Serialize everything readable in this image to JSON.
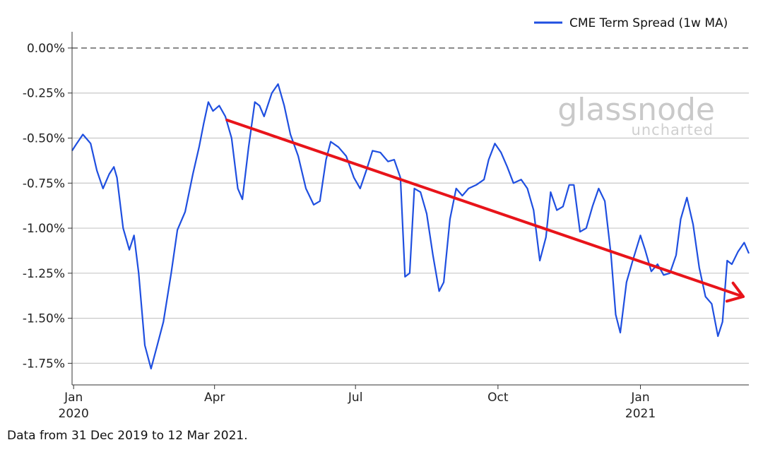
{
  "chart_data": {
    "type": "line",
    "legend": {
      "label": "CME Term Spread (1w MA)",
      "placement": "top-right"
    },
    "ylim": [
      -1.87,
      0.09
    ],
    "y_ticks": [
      {
        "value": 0.0,
        "label": "0.00%"
      },
      {
        "value": -0.25,
        "label": "-0.25%"
      },
      {
        "value": -0.5,
        "label": "-0.50%"
      },
      {
        "value": -0.75,
        "label": "-0.75%"
      },
      {
        "value": -1.0,
        "label": "-1.00%"
      },
      {
        "value": -1.25,
        "label": "-1.25%"
      },
      {
        "value": -1.5,
        "label": "-1.50%"
      },
      {
        "value": -1.75,
        "label": "-1.75%"
      }
    ],
    "xlim": [
      "2019-12-31",
      "2021-03-12"
    ],
    "x_ticks": [
      {
        "date": "2020-01-01",
        "label": "Jan",
        "sublabel": "2020"
      },
      {
        "date": "2020-04-01",
        "label": "Apr",
        "sublabel": ""
      },
      {
        "date": "2020-07-01",
        "label": "Jul",
        "sublabel": ""
      },
      {
        "date": "2020-10-01",
        "label": "Oct",
        "sublabel": ""
      },
      {
        "date": "2021-01-01",
        "label": "Jan",
        "sublabel": "2021"
      }
    ],
    "grid": "horizontal",
    "zero_line": "dashed",
    "series": [
      {
        "name": "CME Term Spread (1w MA)",
        "color": "#1f4fe0",
        "points": [
          [
            "2019-12-31",
            -0.57
          ],
          [
            "2020-01-03",
            -0.53
          ],
          [
            "2020-01-07",
            -0.48
          ],
          [
            "2020-01-12",
            -0.53
          ],
          [
            "2020-01-16",
            -0.68
          ],
          [
            "2020-01-20",
            -0.78
          ],
          [
            "2020-01-24",
            -0.7
          ],
          [
            "2020-01-27",
            -0.66
          ],
          [
            "2020-01-29",
            -0.72
          ],
          [
            "2020-02-02",
            -1.0
          ],
          [
            "2020-02-06",
            -1.12
          ],
          [
            "2020-02-09",
            -1.04
          ],
          [
            "2020-02-12",
            -1.25
          ],
          [
            "2020-02-16",
            -1.65
          ],
          [
            "2020-02-20",
            -1.78
          ],
          [
            "2020-02-24",
            -1.65
          ],
          [
            "2020-02-28",
            -1.52
          ],
          [
            "2020-03-04",
            -1.25
          ],
          [
            "2020-03-08",
            -1.01
          ],
          [
            "2020-03-13",
            -0.91
          ],
          [
            "2020-03-18",
            -0.7
          ],
          [
            "2020-03-22",
            -0.55
          ],
          [
            "2020-03-25",
            -0.42
          ],
          [
            "2020-03-28",
            -0.3
          ],
          [
            "2020-03-31",
            -0.35
          ],
          [
            "2020-04-04",
            -0.32
          ],
          [
            "2020-04-08",
            -0.38
          ],
          [
            "2020-04-12",
            -0.5
          ],
          [
            "2020-04-16",
            -0.78
          ],
          [
            "2020-04-19",
            -0.84
          ],
          [
            "2020-04-23",
            -0.55
          ],
          [
            "2020-04-27",
            -0.3
          ],
          [
            "2020-04-30",
            -0.32
          ],
          [
            "2020-05-03",
            -0.38
          ],
          [
            "2020-05-08",
            -0.25
          ],
          [
            "2020-05-12",
            -0.2
          ],
          [
            "2020-05-16",
            -0.32
          ],
          [
            "2020-05-20",
            -0.48
          ],
          [
            "2020-05-25",
            -0.6
          ],
          [
            "2020-05-30",
            -0.78
          ],
          [
            "2020-06-04",
            -0.87
          ],
          [
            "2020-06-08",
            -0.85
          ],
          [
            "2020-06-12",
            -0.62
          ],
          [
            "2020-06-15",
            -0.52
          ],
          [
            "2020-06-20",
            -0.55
          ],
          [
            "2020-06-25",
            -0.6
          ],
          [
            "2020-06-30",
            -0.72
          ],
          [
            "2020-07-04",
            -0.78
          ],
          [
            "2020-07-08",
            -0.68
          ],
          [
            "2020-07-12",
            -0.57
          ],
          [
            "2020-07-17",
            -0.58
          ],
          [
            "2020-07-22",
            -0.63
          ],
          [
            "2020-07-26",
            -0.62
          ],
          [
            "2020-07-30",
            -0.72
          ],
          [
            "2020-08-02",
            -1.27
          ],
          [
            "2020-08-05",
            -1.25
          ],
          [
            "2020-08-08",
            -0.78
          ],
          [
            "2020-08-12",
            -0.8
          ],
          [
            "2020-08-16",
            -0.92
          ],
          [
            "2020-08-20",
            -1.15
          ],
          [
            "2020-08-24",
            -1.35
          ],
          [
            "2020-08-27",
            -1.3
          ],
          [
            "2020-08-31",
            -0.95
          ],
          [
            "2020-09-04",
            -0.78
          ],
          [
            "2020-09-08",
            -0.82
          ],
          [
            "2020-09-12",
            -0.78
          ],
          [
            "2020-09-17",
            -0.76
          ],
          [
            "2020-09-22",
            -0.73
          ],
          [
            "2020-09-25",
            -0.62
          ],
          [
            "2020-09-29",
            -0.53
          ],
          [
            "2020-10-03",
            -0.58
          ],
          [
            "2020-10-07",
            -0.66
          ],
          [
            "2020-10-11",
            -0.75
          ],
          [
            "2020-10-16",
            -0.73
          ],
          [
            "2020-10-20",
            -0.78
          ],
          [
            "2020-10-24",
            -0.9
          ],
          [
            "2020-10-28",
            -1.18
          ],
          [
            "2020-11-01",
            -1.05
          ],
          [
            "2020-11-04",
            -0.8
          ],
          [
            "2020-11-08",
            -0.9
          ],
          [
            "2020-11-12",
            -0.88
          ],
          [
            "2020-11-16",
            -0.76
          ],
          [
            "2020-11-19",
            -0.76
          ],
          [
            "2020-11-23",
            -1.02
          ],
          [
            "2020-11-27",
            -1.0
          ],
          [
            "2020-12-01",
            -0.88
          ],
          [
            "2020-12-05",
            -0.78
          ],
          [
            "2020-12-09",
            -0.85
          ],
          [
            "2020-12-13",
            -1.15
          ],
          [
            "2020-12-16",
            -1.48
          ],
          [
            "2020-12-19",
            -1.58
          ],
          [
            "2020-12-23",
            -1.3
          ],
          [
            "2020-12-27",
            -1.18
          ],
          [
            "2021-01-01",
            -1.04
          ],
          [
            "2021-01-04",
            -1.12
          ],
          [
            "2021-01-08",
            -1.24
          ],
          [
            "2021-01-12",
            -1.2
          ],
          [
            "2021-01-16",
            -1.26
          ],
          [
            "2021-01-20",
            -1.25
          ],
          [
            "2021-01-24",
            -1.15
          ],
          [
            "2021-01-27",
            -0.95
          ],
          [
            "2021-01-31",
            -0.83
          ],
          [
            "2021-02-04",
            -0.98
          ],
          [
            "2021-02-08",
            -1.22
          ],
          [
            "2021-02-12",
            -1.38
          ],
          [
            "2021-02-16",
            -1.42
          ],
          [
            "2021-02-20",
            -1.6
          ],
          [
            "2021-02-23",
            -1.52
          ],
          [
            "2021-02-26",
            -1.18
          ],
          [
            "2021-03-01",
            -1.2
          ],
          [
            "2021-03-05",
            -1.13
          ],
          [
            "2021-03-09",
            -1.08
          ],
          [
            "2021-03-12",
            -1.14
          ]
        ]
      }
    ],
    "annotation": {
      "kind": "trend-arrow",
      "color": "#e8141a",
      "from": [
        "2020-04-09",
        -0.4
      ],
      "to": [
        "2021-03-12",
        -1.38
      ]
    },
    "watermark": {
      "brand": "glassnode",
      "tagline": "uncharted"
    }
  },
  "footnote": "Data from 31 Dec 2019 to 12 Mar 2021."
}
